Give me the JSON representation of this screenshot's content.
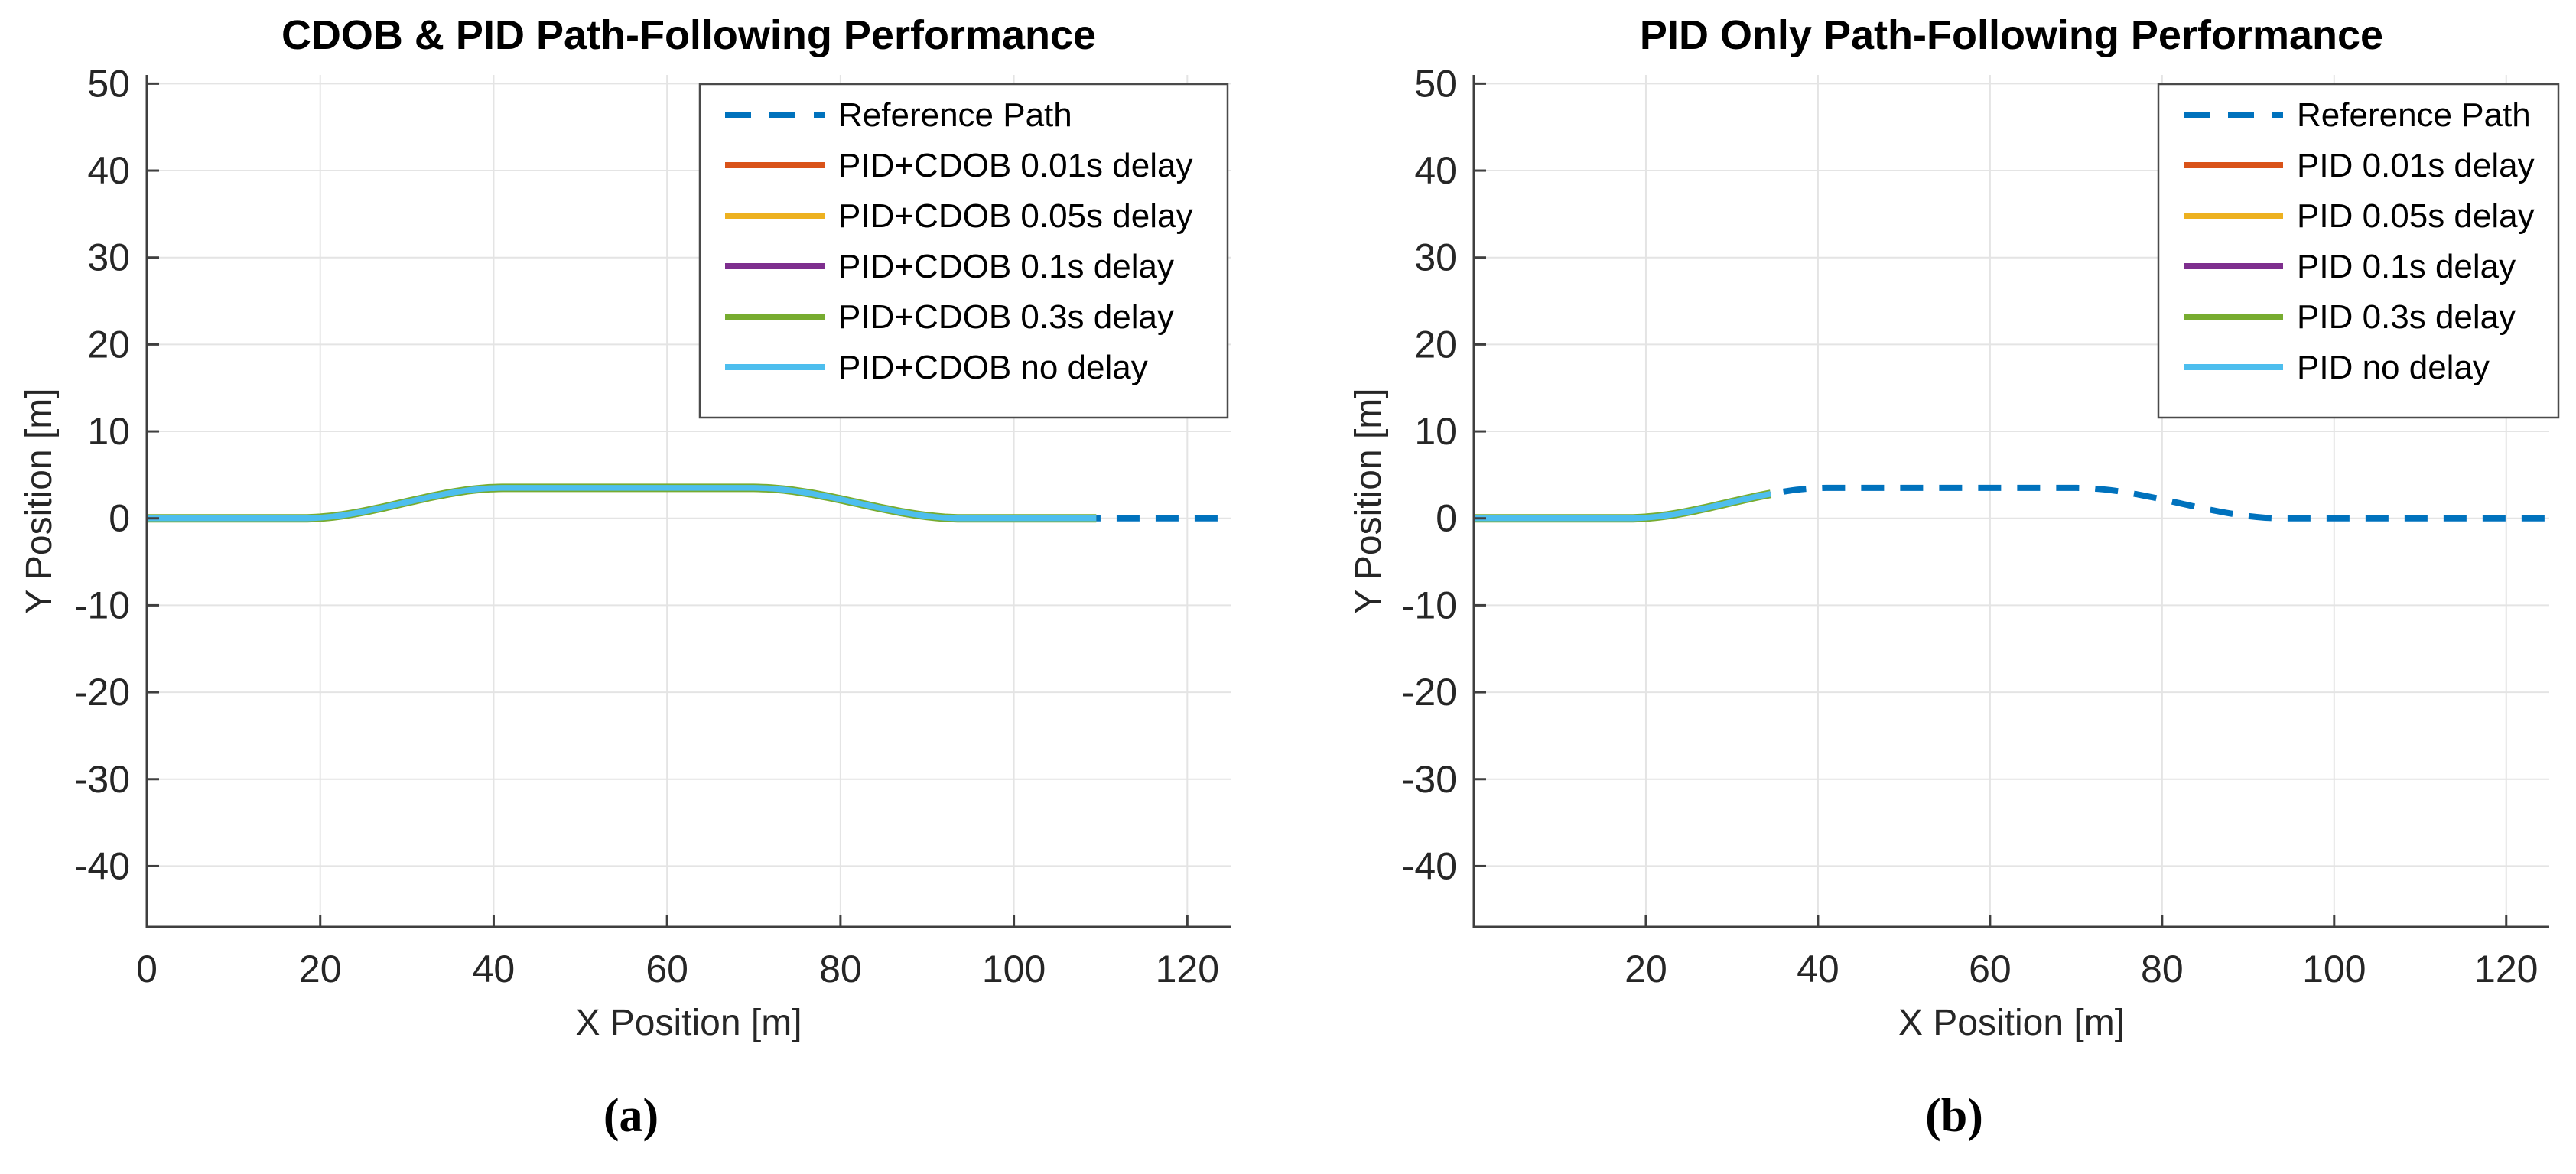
{
  "figure": {
    "caption_a": "(a)",
    "caption_b": "(b)",
    "background": "#ffffff"
  },
  "chart_data": [
    {
      "type": "line",
      "panel": "a",
      "title": "CDOB & PID Path-Following Performance",
      "xlabel": "X Position [m]",
      "ylabel": "Y Position [m]",
      "xlim": [
        0,
        125
      ],
      "ylim": [
        -47,
        51
      ],
      "xticks": [
        0,
        20,
        40,
        60,
        80,
        100,
        120
      ],
      "yticks": [
        -40,
        -30,
        -20,
        -10,
        0,
        10,
        20,
        30,
        40,
        50
      ],
      "grid": true,
      "legend_position": "top-right",
      "path_model": {
        "y_base": 0,
        "amplitude": 3.5,
        "rise": [
          18,
          41
        ],
        "fall": [
          70,
          94
        ]
      },
      "reference_points": [
        [
          0,
          0
        ],
        [
          5,
          0
        ],
        [
          10,
          0
        ],
        [
          15,
          0
        ],
        [
          20,
          0.07
        ],
        [
          25,
          0.78
        ],
        [
          30,
          1.86
        ],
        [
          35,
          2.91
        ],
        [
          40,
          3.48
        ],
        [
          45,
          3.5
        ],
        [
          50,
          3.5
        ],
        [
          55,
          3.5
        ],
        [
          60,
          3.5
        ],
        [
          65,
          3.5
        ],
        [
          70,
          3.5
        ],
        [
          75,
          3.11
        ],
        [
          80,
          2.18
        ],
        [
          85,
          1.11
        ],
        [
          90,
          0.26
        ],
        [
          95,
          0
        ],
        [
          100,
          0
        ],
        [
          105,
          0
        ],
        [
          110,
          0
        ],
        [
          115,
          0
        ],
        [
          120,
          0
        ],
        [
          125,
          0
        ]
      ],
      "series": [
        {
          "name": "Reference Path",
          "color": "#0072BD",
          "style": "dashed",
          "range": [
            0,
            125
          ]
        },
        {
          "name": "PID+CDOB 0.01s delay",
          "color": "#D95319",
          "style": "solid",
          "range": [
            0,
            109.5
          ]
        },
        {
          "name": "PID+CDOB 0.05s delay",
          "color": "#EDB120",
          "style": "solid",
          "range": [
            0,
            109.5
          ]
        },
        {
          "name": "PID+CDOB 0.1s delay",
          "color": "#7E2F8E",
          "style": "solid",
          "range": [
            0,
            109.5
          ]
        },
        {
          "name": "PID+CDOB 0.3s delay",
          "color": "#77AC30",
          "style": "solid",
          "range": [
            0,
            109.5
          ]
        },
        {
          "name": "PID+CDOB no delay",
          "color": "#4DBEEE",
          "style": "solid",
          "range": [
            0,
            109.5
          ]
        }
      ],
      "note": "All controller curves overlap the reference path; cyan no-delay curve drawn on top, solid to x=110, dashed reference visible beyond"
    },
    {
      "type": "line",
      "panel": "b",
      "title": "PID Only Path-Following Performance",
      "xlabel": "X Position [m]",
      "ylabel": "Y Position [m]",
      "xlim": [
        0,
        125
      ],
      "ylim": [
        -47,
        51
      ],
      "xticks": [
        20,
        40,
        60,
        80,
        100,
        120
      ],
      "yticks": [
        -40,
        -30,
        -20,
        -10,
        0,
        10,
        20,
        30,
        40,
        50
      ],
      "grid": true,
      "legend_position": "top-right",
      "path_model": {
        "y_base": 0,
        "amplitude": 3.5,
        "rise": [
          18,
          41
        ],
        "fall": [
          70,
          94
        ]
      },
      "reference_points": [
        [
          0,
          0
        ],
        [
          5,
          0
        ],
        [
          10,
          0
        ],
        [
          15,
          0
        ],
        [
          20,
          0.07
        ],
        [
          25,
          0.78
        ],
        [
          30,
          1.86
        ],
        [
          35,
          2.91
        ],
        [
          40,
          3.48
        ],
        [
          45,
          3.5
        ],
        [
          50,
          3.5
        ],
        [
          55,
          3.5
        ],
        [
          60,
          3.5
        ],
        [
          65,
          3.5
        ],
        [
          70,
          3.5
        ],
        [
          75,
          3.11
        ],
        [
          80,
          2.18
        ],
        [
          85,
          1.11
        ],
        [
          90,
          0.26
        ],
        [
          95,
          0
        ],
        [
          100,
          0
        ],
        [
          105,
          0
        ],
        [
          110,
          0
        ],
        [
          115,
          0
        ],
        [
          120,
          0
        ],
        [
          125,
          0
        ]
      ],
      "series": [
        {
          "name": "Reference Path",
          "color": "#0072BD",
          "style": "dashed",
          "range": [
            0,
            125
          ]
        },
        {
          "name": "PID 0.01s delay",
          "color": "#D95319",
          "style": "solid",
          "range": [
            0,
            34.5
          ]
        },
        {
          "name": "PID 0.05s delay",
          "color": "#EDB120",
          "style": "solid",
          "range": [
            0,
            34.5
          ]
        },
        {
          "name": "PID 0.1s delay",
          "color": "#7E2F8E",
          "style": "solid",
          "range": [
            0,
            34.5
          ]
        },
        {
          "name": "PID 0.3s delay",
          "color": "#77AC30",
          "style": "solid",
          "range": [
            0,
            34.5
          ]
        },
        {
          "name": "PID no delay",
          "color": "#4DBEEE",
          "style": "solid",
          "range": [
            0,
            34.5
          ]
        }
      ],
      "note": "Controller curves shown solid only to x=35; dashed reference path visible over the lane-change bump and beyond"
    }
  ]
}
